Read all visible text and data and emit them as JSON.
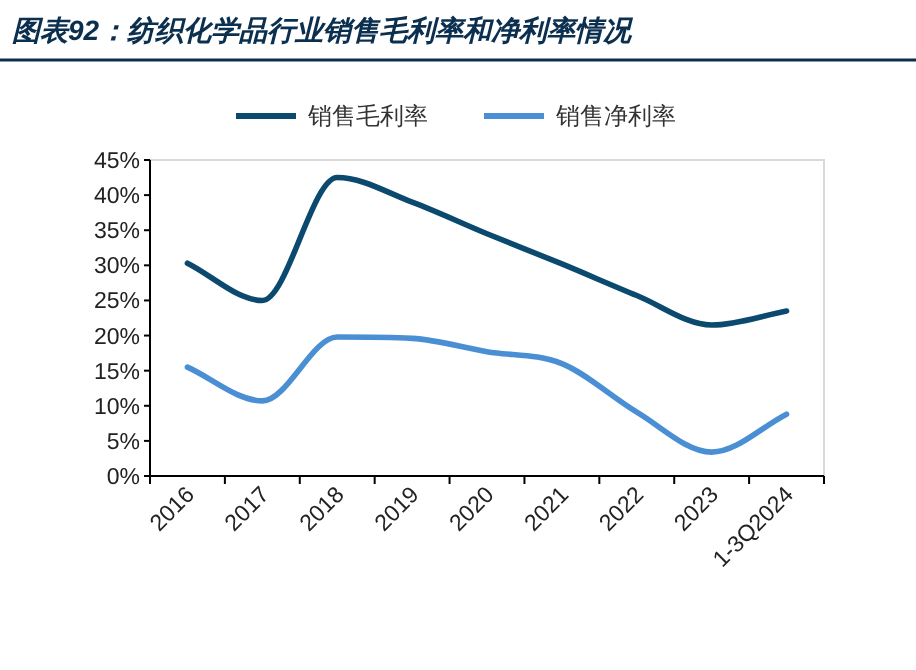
{
  "chart_data": {
    "type": "line",
    "title": "图表92：纺织化学品行业销售毛利率和净利率情况",
    "categories": [
      "2016",
      "2017",
      "2018",
      "2019",
      "2020",
      "2021",
      "2022",
      "2023",
      "1-3Q2024"
    ],
    "series": [
      {
        "name": "销售毛利率",
        "color": "#0b4a6e",
        "values": [
          30.3,
          25.0,
          42.5,
          39.0,
          34.5,
          30.2,
          25.7,
          21.5,
          23.5
        ]
      },
      {
        "name": "销售净利率",
        "color": "#4a8fd4",
        "values": [
          15.5,
          10.7,
          19.8,
          19.6,
          17.7,
          16.0,
          9.1,
          3.4,
          8.8
        ]
      }
    ],
    "ylim": [
      0,
      45
    ],
    "yticks": [
      {
        "value": 0,
        "label": "0%"
      },
      {
        "value": 5,
        "label": "5%"
      },
      {
        "value": 10,
        "label": "10%"
      },
      {
        "value": 15,
        "label": "15%"
      },
      {
        "value": 20,
        "label": "20%"
      },
      {
        "value": 25,
        "label": "25%"
      },
      {
        "value": 30,
        "label": "30%"
      },
      {
        "value": 35,
        "label": "35%"
      },
      {
        "value": 40,
        "label": "40%"
      },
      {
        "value": 45,
        "label": "45%"
      }
    ],
    "grid": false,
    "legend": "top",
    "marker": "none",
    "line_style": "solid"
  }
}
